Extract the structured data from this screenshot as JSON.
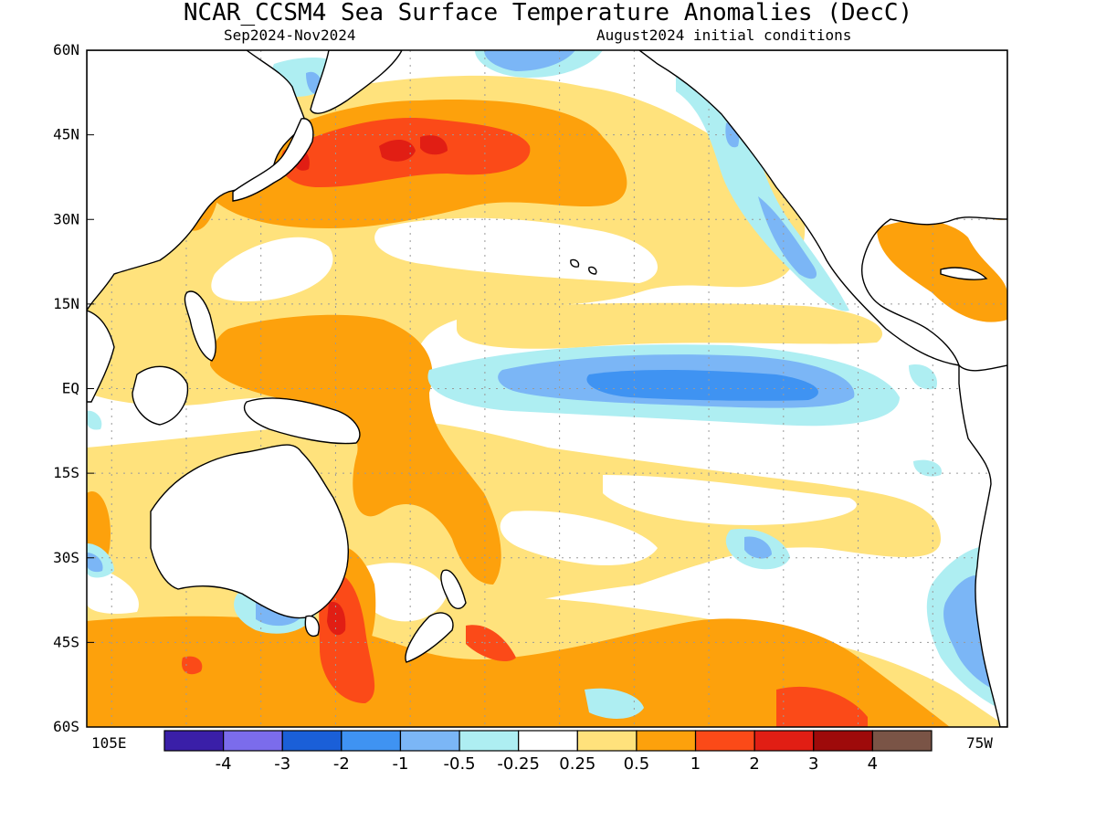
{
  "header": {
    "title": "NCAR_CCSM4 Sea Surface Temperature Anomalies (DecC)",
    "period": "Sep2024-Nov2024",
    "init": "August2024 initial conditions"
  },
  "axes": {
    "lat_labels": [
      {
        "lat": 60,
        "label": "60N"
      },
      {
        "lat": 45,
        "label": "45N"
      },
      {
        "lat": 30,
        "label": "30N"
      },
      {
        "lat": 15,
        "label": "15N"
      },
      {
        "lat": 0,
        "label": "EQ"
      },
      {
        "lat": -15,
        "label": "15S"
      },
      {
        "lat": -30,
        "label": "30S"
      },
      {
        "lat": -45,
        "label": "45S"
      },
      {
        "lat": -60,
        "label": "60S"
      }
    ],
    "lon_left": "105E",
    "lon_right": "75W",
    "lon_range_east": [
      100,
      285
    ],
    "lat_range": [
      -60,
      60
    ]
  },
  "colorbar": {
    "colors": [
      "#3a1fa8",
      "#7b6cec",
      "#1a5fd8",
      "#3f93f2",
      "#7bb6f6",
      "#aeeef2",
      "#ffffff",
      "#ffe27c",
      "#fda10c",
      "#fb4a18",
      "#e11e14",
      "#9e0a0a",
      "#7a5446"
    ],
    "labels": [
      "-4",
      "-3",
      "-2",
      "-1",
      "-0.5",
      "-0.25",
      "0.25",
      "0.5",
      "1",
      "2",
      "3",
      "4"
    ]
  },
  "chart_data": {
    "type": "heatmap",
    "title": "NCAR_CCSM4 Sea Surface Temperature Anomalies (DecC)",
    "subtitle_left": "Sep2024-Nov2024",
    "subtitle_right": "August2024 initial conditions",
    "lon_range": [
      100,
      285
    ],
    "lat_range": [
      -60,
      60
    ],
    "levels": [
      -4,
      -3,
      -2,
      -1,
      -0.5,
      -0.25,
      0.25,
      0.5,
      1,
      2,
      3,
      4
    ],
    "features": [
      {
        "region": "North Pacific 35N-45N 140E-185E",
        "anomaly": 2
      },
      {
        "region": "East of Japan ~40N",
        "anomaly": 3
      },
      {
        "region": "Equatorial Pacific 150W-100W",
        "anomaly": -1
      },
      {
        "region": "Tasman Sea 35S-45S",
        "anomaly": 2
      },
      {
        "region": "Western tropical Pacific",
        "anomaly": 0.5
      },
      {
        "region": "Southern Ocean 45S-60S",
        "anomaly": 0.5
      },
      {
        "region": "California coast",
        "anomaly": -0.5
      }
    ]
  }
}
